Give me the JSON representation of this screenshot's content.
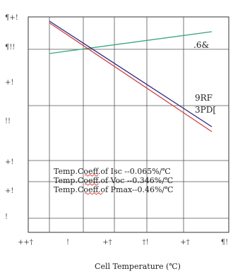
{
  "chart_data": {
    "type": "line",
    "title": "",
    "xlabel": "Cell Temperature (℃)",
    "ylabel": "",
    "x_tick_labels": [
      "++†",
      "!",
      "+†",
      "†!",
      "+†",
      "¶!"
    ],
    "y_tick_labels": [
      "¶+!",
      "¶!!",
      "+!",
      "!!",
      "+!",
      "+!",
      "!"
    ],
    "xlim": [
      0,
      5
    ],
    "ylim": [
      0,
      6
    ],
    "series": [
      {
        "name": "Isc",
        "label_text": ".6&",
        "color": "#3aa67a",
        "x": [
          0,
          5
        ],
        "y": [
          5.08,
          5.7
        ]
      },
      {
        "name": "Voc",
        "label_text": "9RF",
        "color": "#2a2a80",
        "x": [
          0,
          5
        ],
        "y": [
          6.0,
          3.0
        ]
      },
      {
        "name": "Pmax",
        "label_text": "3PD[",
        "color": "#d24040",
        "x": [
          0,
          5
        ],
        "y": [
          5.95,
          2.86
        ]
      }
    ],
    "annotations": [
      "Temp.Coeff.of Isc --0.065%/℃",
      "Temp.Coeff.of Voc --0.346%/℃",
      "Temp.Coeff.of Pmax--0.46%/℃"
    ],
    "grid": true
  }
}
